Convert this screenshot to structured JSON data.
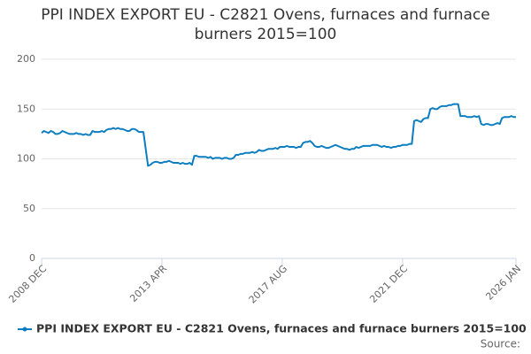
{
  "chart_data": {
    "type": "line",
    "title": "PPI INDEX EXPORT EU - C2821 Ovens, furnaces and furnace burners 2015=100",
    "source": "Source:",
    "categories": [
      "2008 DEC",
      null,
      null,
      null,
      null,
      null,
      null,
      null,
      null,
      null,
      null,
      null,
      null,
      null,
      null,
      null,
      null,
      null,
      null,
      null,
      null,
      null,
      null,
      null,
      null,
      null,
      null,
      null,
      null,
      null,
      null,
      null,
      null,
      null,
      null,
      null,
      null,
      null,
      null,
      null,
      null,
      null,
      null,
      null,
      null,
      null,
      null,
      null,
      null,
      null,
      null,
      null,
      "2013 APR",
      null,
      null,
      null,
      null,
      null,
      null,
      null,
      null,
      null,
      null,
      null,
      null,
      null,
      null,
      null,
      null,
      null,
      null,
      null,
      null,
      null,
      null,
      null,
      null,
      null,
      null,
      null,
      null,
      null,
      null,
      null,
      null,
      null,
      null,
      null,
      null,
      null,
      null,
      null,
      null,
      null,
      null,
      null,
      null,
      null,
      null,
      null,
      null,
      null,
      null,
      null,
      "2017 AUG",
      null,
      null,
      null,
      null,
      null,
      null,
      null,
      null,
      null,
      null,
      null,
      null,
      null,
      null,
      null,
      null,
      null,
      null,
      null,
      null,
      null,
      null,
      null,
      null,
      null,
      null,
      null,
      null,
      null,
      null,
      null,
      null,
      null,
      null,
      null,
      null,
      null,
      null,
      null,
      null,
      null,
      null,
      null,
      null,
      null,
      null,
      null,
      null,
      null,
      null,
      null,
      "2021 DEC",
      null,
      null,
      null,
      null,
      null,
      null,
      null,
      null,
      null,
      null,
      null,
      null,
      null,
      null,
      null,
      null,
      null,
      null,
      null,
      null,
      null,
      null,
      null,
      null,
      null,
      null,
      null,
      null,
      null,
      null,
      null,
      null,
      null,
      null,
      null,
      null,
      null,
      null,
      null,
      null,
      null,
      null,
      null,
      null,
      null,
      null,
      null,
      null,
      "2026 JAN"
    ],
    "series": [
      {
        "name": "PPI INDEX EXPORT EU - C2821 Ovens, furnaces and furnace burners 2015=100",
        "color": "#0b7dc1",
        "values": [
          126,
          128,
          127,
          126,
          128,
          127,
          125,
          125,
          126,
          128,
          127,
          126,
          125,
          125,
          125,
          126,
          125,
          125,
          124,
          125,
          124,
          124,
          128,
          127,
          127,
          127,
          128,
          127,
          129,
          130,
          130,
          131,
          130,
          131,
          130,
          130,
          129,
          128,
          128,
          130,
          130,
          129,
          127,
          127,
          127,
          110,
          93,
          94,
          96,
          97,
          97,
          96,
          96,
          97,
          97,
          98,
          97,
          96,
          96,
          96,
          95,
          96,
          95,
          95,
          96,
          94,
          103,
          103,
          102,
          102,
          102,
          102,
          101,
          102,
          100,
          101,
          101,
          101,
          100,
          101,
          101,
          100,
          100,
          101,
          104,
          104,
          105,
          105,
          106,
          106,
          106,
          107,
          106,
          107,
          109,
          108,
          108,
          109,
          110,
          110,
          110,
          111,
          110,
          112,
          112,
          112,
          113,
          112,
          112,
          112,
          111,
          112,
          112,
          116,
          117,
          117,
          118,
          116,
          113,
          112,
          112,
          113,
          112,
          111,
          111,
          112,
          113,
          114,
          113,
          112,
          111,
          110,
          110,
          109,
          110,
          110,
          112,
          111,
          112,
          113,
          113,
          113,
          113,
          114,
          114,
          114,
          113,
          112,
          113,
          112,
          112,
          111,
          112,
          112,
          113,
          113,
          114,
          114,
          114,
          115,
          115,
          138,
          139,
          138,
          137,
          140,
          141,
          141,
          150,
          151,
          150,
          150,
          152,
          153,
          153,
          153,
          154,
          154,
          155,
          155,
          155,
          143,
          143,
          143,
          142,
          142,
          142,
          143,
          142,
          143,
          135,
          134,
          135,
          135,
          134,
          134,
          135,
          136,
          135,
          141,
          142,
          142,
          142,
          143,
          142,
          142
        ]
      }
    ],
    "ylim": [
      0,
      200
    ],
    "yticks": [
      0,
      50,
      100,
      150,
      200
    ],
    "grid": true,
    "legend": "bottom"
  }
}
